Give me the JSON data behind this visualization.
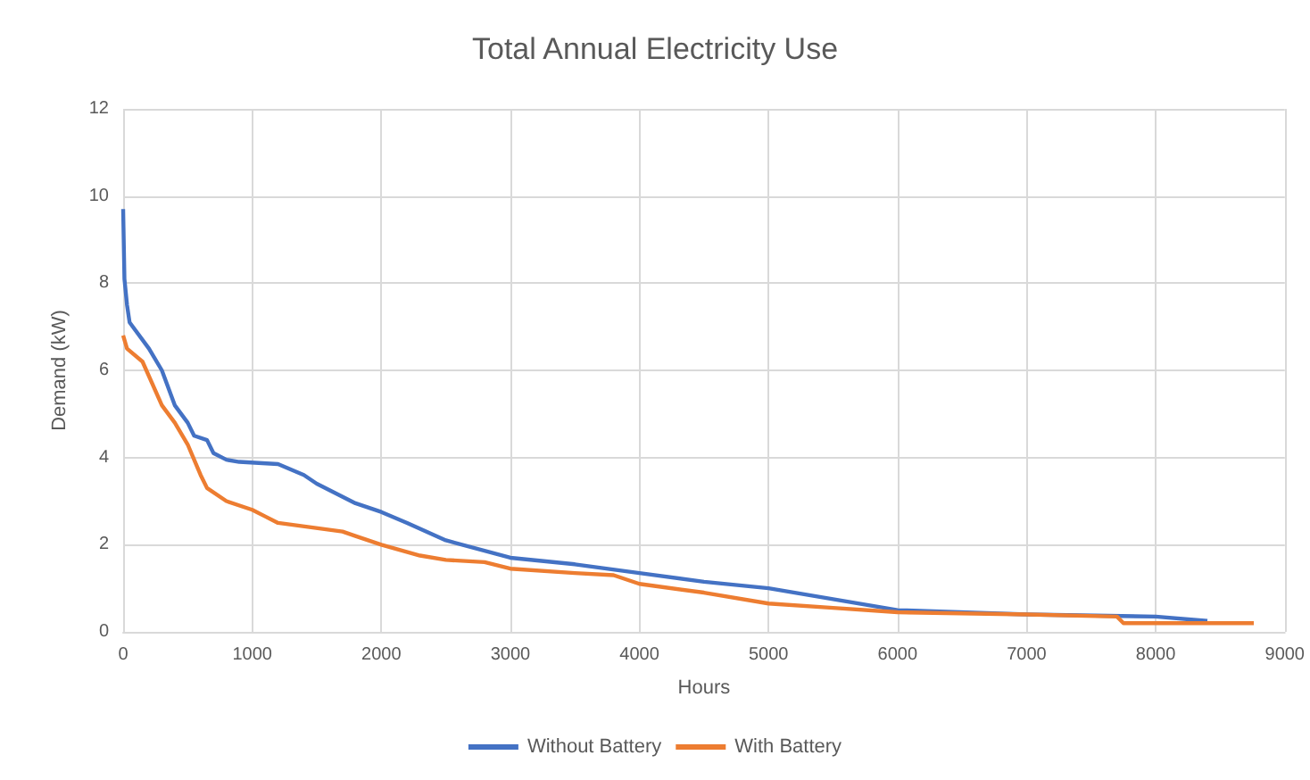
{
  "chart_data": {
    "type": "line",
    "title": "Total Annual Electricity Use",
    "xlabel": "Hours",
    "ylabel": "Demand (kW)",
    "xlim": [
      0,
      9000
    ],
    "xticks": [
      0,
      1000,
      2000,
      3000,
      4000,
      5000,
      6000,
      7000,
      8000,
      9000
    ],
    "ylim": [
      0,
      12
    ],
    "yticks": [
      0,
      2,
      4,
      6,
      8,
      10,
      12
    ],
    "grid": true,
    "legend": "bottom",
    "marker": "none",
    "line_style": "solid",
    "series": [
      {
        "name": "Without Battery",
        "color": "#4472c4",
        "x": [
          0,
          10,
          30,
          50,
          200,
          300,
          400,
          500,
          550,
          650,
          700,
          800,
          900,
          1200,
          1400,
          1500,
          1800,
          2000,
          2200,
          2500,
          3000,
          3500,
          4000,
          4500,
          5000,
          5500,
          6000,
          7000,
          8000,
          8400
        ],
        "values": [
          9.7,
          8.1,
          7.5,
          7.1,
          6.5,
          6.0,
          5.2,
          4.8,
          4.5,
          4.4,
          4.1,
          3.95,
          3.9,
          3.85,
          3.6,
          3.4,
          2.95,
          2.75,
          2.5,
          2.1,
          1.7,
          1.55,
          1.35,
          1.15,
          1.0,
          0.75,
          0.5,
          0.4,
          0.35,
          0.25
        ]
      },
      {
        "name": "With Battery",
        "color": "#ed7d31",
        "x": [
          0,
          30,
          150,
          300,
          400,
          500,
          600,
          650,
          800,
          1000,
          1100,
          1200,
          1700,
          1800,
          2000,
          2300,
          2500,
          2800,
          3000,
          3500,
          3800,
          4000,
          4500,
          5000,
          5500,
          6000,
          7000,
          7700,
          7750,
          8760
        ],
        "values": [
          6.8,
          6.5,
          6.2,
          5.2,
          4.8,
          4.3,
          3.6,
          3.3,
          3.0,
          2.8,
          2.65,
          2.5,
          2.3,
          2.2,
          2.0,
          1.75,
          1.65,
          1.6,
          1.45,
          1.35,
          1.3,
          1.1,
          0.9,
          0.65,
          0.55,
          0.45,
          0.4,
          0.35,
          0.2,
          0.2
        ]
      }
    ]
  }
}
